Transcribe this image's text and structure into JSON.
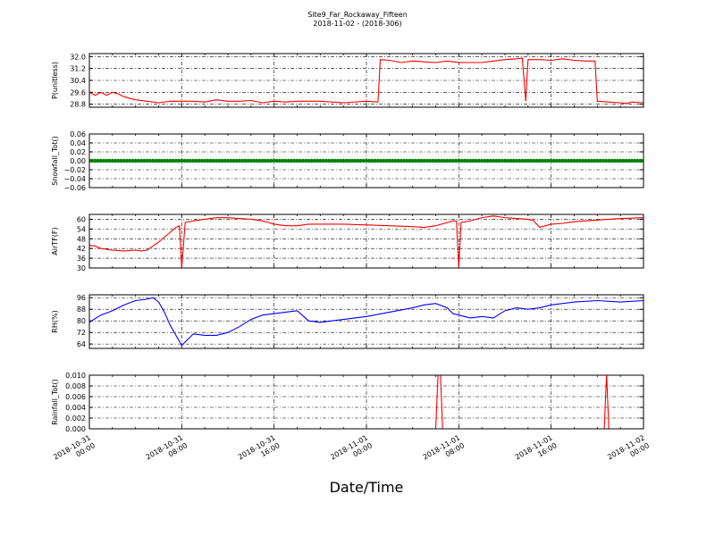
{
  "chart_data": {
    "type": "line",
    "title": "Site9_Far_Rockaway_Fifteen",
    "subtitle": "2018-11-02 - (2018-306)",
    "xlabel": "Date/Time",
    "x_ticks": [
      {
        "l1": "2018-10-31",
        "l2": "00:00"
      },
      {
        "l1": "2018-10-31",
        "l2": "08:00"
      },
      {
        "l1": "2018-10-31",
        "l2": "16:00"
      },
      {
        "l1": "2018-11-01",
        "l2": "00:00"
      },
      {
        "l1": "2018-11-01",
        "l2": "08:00"
      },
      {
        "l1": "2018-11-01",
        "l2": "16:00"
      },
      {
        "l1": "2018-11-02",
        "l2": "00:00"
      }
    ],
    "xlim_hours": [
      0,
      48
    ],
    "grid": true,
    "panels": [
      {
        "ylabel": "P(unitless)",
        "ylim": [
          28.6,
          32.2
        ],
        "yticks": [
          "32.0",
          "31.2",
          "30.4",
          "29.6",
          "28.8"
        ],
        "color": "#ff0000",
        "x": [
          0,
          0.5,
          1,
          1.5,
          2,
          2.5,
          3,
          4,
          5,
          6,
          7,
          8,
          9,
          10,
          11,
          12,
          13,
          14,
          15,
          16,
          17,
          18,
          19,
          20,
          21,
          22,
          24,
          25,
          25.2,
          26,
          27,
          28,
          29,
          30,
          31,
          32,
          33,
          34,
          35,
          36,
          37,
          37.5,
          37.8,
          38,
          39,
          40,
          41,
          42,
          43,
          43.8,
          44,
          45,
          46,
          46.5,
          47,
          48
        ],
        "y": [
          29.6,
          29.4,
          29.6,
          29.4,
          29.6,
          29.5,
          29.3,
          29.1,
          29.0,
          28.9,
          29.0,
          29.0,
          29.0,
          28.95,
          29.1,
          29.0,
          29.0,
          29.05,
          28.9,
          29.0,
          28.95,
          29.0,
          29.0,
          29.0,
          28.95,
          28.9,
          29.0,
          28.95,
          31.8,
          31.75,
          31.6,
          31.7,
          31.65,
          31.6,
          31.7,
          31.6,
          31.6,
          31.6,
          31.7,
          31.8,
          31.85,
          31.9,
          29.0,
          31.8,
          31.8,
          31.75,
          31.85,
          31.75,
          31.7,
          31.7,
          29.0,
          28.95,
          28.9,
          28.85,
          28.95,
          28.9
        ]
      },
      {
        "ylabel": "Snowfall_Tot()",
        "ylim": [
          -0.06,
          0.06
        ],
        "yticks": [
          "0.06",
          "0.04",
          "0.02",
          "0.00",
          "−0.02",
          "−0.04",
          "−0.06"
        ],
        "color": "#008000",
        "style": "dots",
        "x": [
          0,
          48
        ],
        "y": [
          0,
          0
        ]
      },
      {
        "ylabel": "AirTF(F)",
        "ylim": [
          30,
          63
        ],
        "yticks": [
          "60",
          "54",
          "48",
          "42",
          "36",
          "30"
        ],
        "color": "#ff0000",
        "x": [
          0,
          0.5,
          1,
          2,
          3,
          4,
          4.5,
          5,
          6,
          7,
          7.5,
          7.8,
          8,
          8.3,
          9,
          10,
          11,
          12,
          13,
          14,
          15,
          16,
          17,
          18,
          19,
          20,
          22,
          24,
          26,
          28,
          29,
          30,
          31,
          31.5,
          31.8,
          32,
          32.2,
          33,
          34,
          35,
          36,
          37,
          38,
          38.5,
          39,
          40,
          41,
          42,
          44,
          46,
          48
        ],
        "y": [
          44,
          43.5,
          42,
          41,
          40.5,
          41,
          40.5,
          41,
          46,
          52,
          55,
          56,
          30,
          58,
          59,
          60,
          61,
          61,
          60.5,
          60,
          59,
          57,
          56,
          56,
          57,
          57,
          57,
          56.5,
          56,
          55.5,
          55,
          56,
          58,
          59,
          59,
          30,
          58,
          59,
          61,
          62,
          61,
          60.5,
          60,
          59,
          55,
          57,
          57.5,
          58.5,
          59.5,
          60.5,
          61
        ]
      },
      {
        "ylabel": "RH(%)",
        "ylim": [
          61,
          98
        ],
        "yticks": [
          "96",
          "88",
          "80",
          "72",
          "64"
        ],
        "color": "#0000ff",
        "x": [
          0,
          1,
          2,
          3,
          4,
          5,
          5.5,
          6,
          6.5,
          7,
          8,
          9,
          10,
          11,
          12,
          13,
          14,
          15,
          16,
          17,
          18,
          19,
          20,
          21,
          22,
          23,
          24,
          26,
          28,
          29,
          30,
          31,
          31.5,
          32,
          33,
          34,
          35,
          36,
          37,
          38,
          39,
          40,
          42,
          44,
          46,
          48
        ],
        "y": [
          79,
          84,
          87,
          91,
          94,
          95,
          96,
          93,
          86,
          77,
          63,
          71,
          70,
          70,
          72,
          76,
          81,
          84,
          85,
          86,
          87,
          80,
          79,
          80,
          81,
          82,
          83,
          86,
          89,
          91,
          92,
          89,
          85,
          84,
          82,
          83,
          82,
          87,
          89,
          88,
          89,
          91,
          93,
          94,
          93,
          94
        ]
      },
      {
        "ylabel": "Rainfall_Tot()",
        "ylim": [
          0,
          0.01
        ],
        "yticks": [
          "0.010",
          "0.008",
          "0.006",
          "0.004",
          "0.002",
          "0.000"
        ],
        "color": "#ff0000",
        "x": [
          0,
          30,
          30.2,
          30.4,
          30.6,
          44.6,
          44.8,
          45,
          48
        ],
        "y": [
          0,
          0,
          0.01,
          0.0108,
          0,
          0,
          0.0102,
          0,
          0
        ]
      }
    ]
  }
}
